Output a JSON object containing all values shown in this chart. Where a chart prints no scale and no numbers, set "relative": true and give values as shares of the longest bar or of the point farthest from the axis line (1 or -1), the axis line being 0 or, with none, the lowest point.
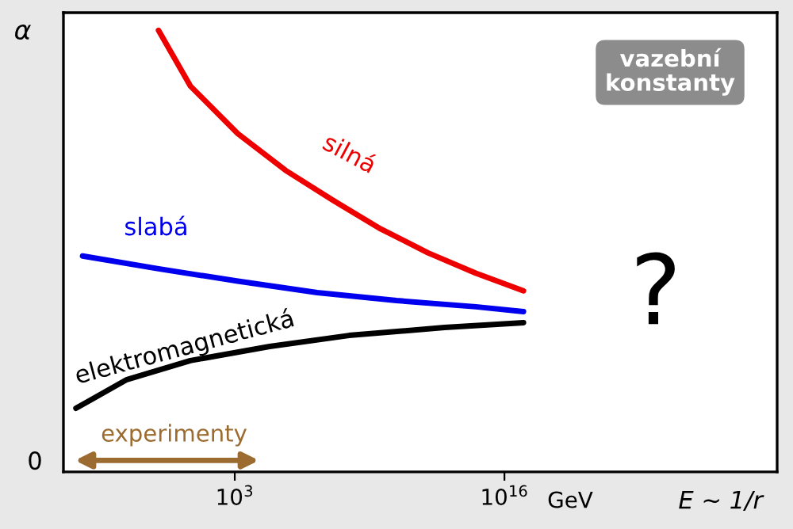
{
  "chart_data": {
    "type": "line",
    "relative": true,
    "log": "x",
    "xlabel": "E ~ 1/r",
    "ylabel": "α",
    "xlim": [
      5.5e-06,
      1.4e+29
    ],
    "xticks": [
      {
        "value": 1000,
        "label": "10$^{3}$"
      },
      {
        "value": 1e+16,
        "label": "10$^{16}$"
      }
    ],
    "series": [
      {
        "name": "silná",
        "color": "#ee0000",
        "x": [
          0.21,
          7.2,
          1400.0,
          280000.0,
          55000000.0,
          11000000000.0,
          2100000000000.0,
          420000000000000.0,
          8.3e+16
        ],
        "values": [
          1.0,
          0.874,
          0.766,
          0.683,
          0.615,
          0.55,
          0.496,
          0.45,
          0.41
        ]
      },
      {
        "name": "slabá",
        "color": "#0000ee",
        "x": [
          4.6e-05,
          0.21,
          1400.0,
          9500000.0,
          63000000000.0,
          420000000000000.0,
          8.3e+16
        ],
        "values": [
          0.489,
          0.46,
          0.432,
          0.406,
          0.388,
          0.374,
          0.363
        ]
      },
      {
        "name": "elektromagnetická",
        "color": "#000000",
        "x": [
          2.2e-05,
          0.0063,
          7.2,
          48000.0,
          320000000.0,
          13000000000000.0,
          8.3e+16
        ],
        "values": [
          0.144,
          0.209,
          0.252,
          0.284,
          0.309,
          0.327,
          0.338
        ]
      }
    ],
    "annotations": [
      "0",
      "vazební\nkonstanty",
      "?",
      "experimenty",
      "GeV"
    ],
    "grid": false,
    "legend": false,
    "marker": "none",
    "line_style": "solid"
  }
}
